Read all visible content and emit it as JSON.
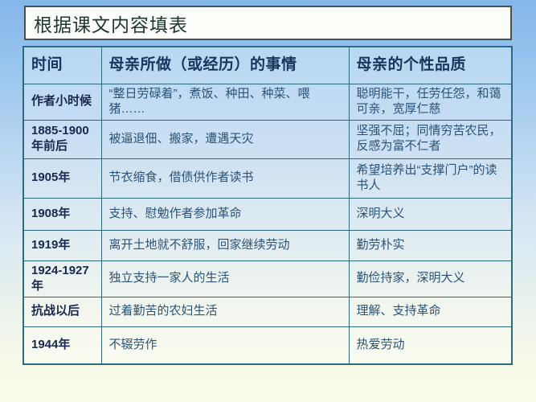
{
  "slide": {
    "title": "根据课文内容填表"
  },
  "table": {
    "headers": [
      "时间",
      "母亲所做（或经历）的事情",
      "母亲的个性品质"
    ],
    "rows": [
      {
        "time": "作者小时候",
        "events": "“整日劳碌着”，煮饭、种田、种菜、喂猪……",
        "qualities": "聪明能干，任劳任怨，和蔼可亲，宽厚仁慈"
      },
      {
        "time": "1885-1900年前后",
        "events": "被逼退佃、搬家，遭遇天灾",
        "qualities": "坚强不屈；同情穷苦农民，反感为富不仁者"
      },
      {
        "time": "1905年",
        "events": "节衣缩食，借债供作者读书",
        "qualities": "希望培养出“支撑门户”的读书人"
      },
      {
        "time": "1908年",
        "events": "支持、慰勉作者参加革命",
        "qualities": "深明大义"
      },
      {
        "time": "1919年",
        "events": "离开土地就不舒服，回家继续劳动",
        "qualities": "勤劳朴实"
      },
      {
        "time": "1924-1927年",
        "events": "独立支持一家人的生活",
        "qualities": "勤俭持家，深明大义"
      },
      {
        "time": "抗战以后",
        "events": "过着勤苦的农妇生活",
        "qualities": "理解、支持革命"
      },
      {
        "time": "1944年",
        "events": "不辍劳作",
        "qualities": "热爱劳动"
      }
    ]
  },
  "colors": {
    "background_top": "#84b7e9",
    "background_bottom": "#fbfce9",
    "table_border": "#2d6a7d",
    "header_text": "#17365e",
    "time_text": "#18294d",
    "body_text": "#2b5377",
    "title_text": "#203731",
    "title_box_bg": "#fcfefa"
  }
}
